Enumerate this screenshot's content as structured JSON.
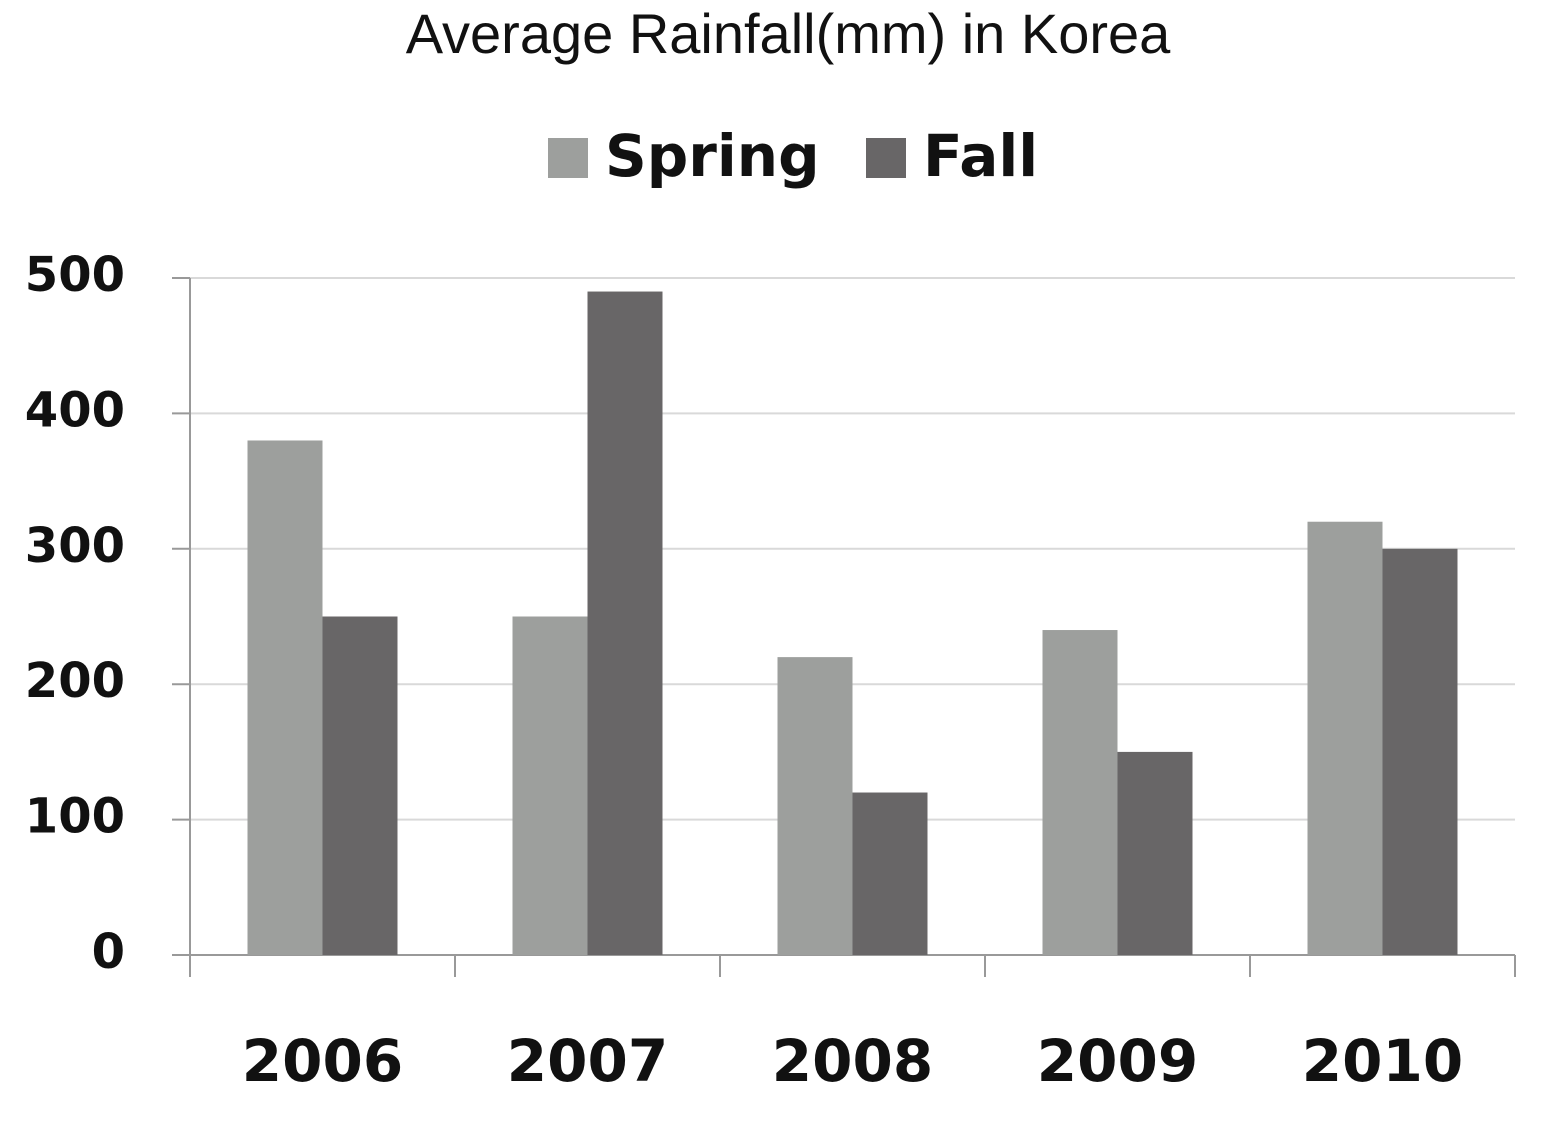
{
  "chart_data": {
    "type": "bar",
    "title": "Average Rainfall(mm) in Korea",
    "categories": [
      "2006",
      "2007",
      "2008",
      "2009",
      "2010"
    ],
    "series": [
      {
        "name": "Spring",
        "color": "#9d9f9d",
        "values": [
          380,
          250,
          220,
          240,
          320
        ]
      },
      {
        "name": "Fall",
        "color": "#686667",
        "values": [
          250,
          490,
          120,
          150,
          300
        ]
      }
    ],
    "ylim": [
      0,
      500
    ],
    "yticks": [
      0,
      100,
      200,
      300,
      400,
      500
    ],
    "grid": true,
    "legend": "top"
  }
}
